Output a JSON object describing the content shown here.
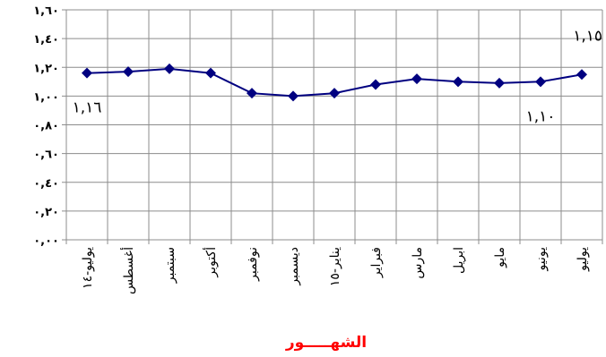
{
  "chart_data": {
    "type": "line",
    "categories": [
      "يوليو-١٤",
      "أغسطس",
      "سبتمبر",
      "أكتوبر",
      "نوفمبر",
      "ديسمبر",
      "يناير-١٥",
      "فبراير",
      "مارس",
      "ابريل",
      "مايو",
      "يونيو",
      "يوليو"
    ],
    "series": [
      {
        "values": [
          1.16,
          1.17,
          1.19,
          1.16,
          1.02,
          1.0,
          1.02,
          1.08,
          1.12,
          1.1,
          1.09,
          1.1,
          1.15
        ]
      }
    ],
    "ylim": [
      0,
      1.6
    ],
    "yticks": [
      0,
      0.2,
      0.4,
      0.6,
      0.8,
      1.0,
      1.2,
      1.4,
      1.6
    ],
    "ytick_labels": [
      "٠,٠٠",
      "٠,٢٠",
      "٠,٤٠",
      "٠,٦٠",
      "٠,٨٠",
      "١,٠٠",
      "١,٢٠",
      "١,٤٠",
      "١,٦٠"
    ],
    "xlabel": "الشهـــــور",
    "annotations": [
      {
        "text": "١,١٦",
        "index": 0
      },
      {
        "text": "١,١٠",
        "index": 11
      },
      {
        "text": "١,١٥",
        "index": 12
      }
    ],
    "grid": true,
    "colors": {
      "line": "#000080",
      "marker": "#000080",
      "grid": "#8c8c8c",
      "xlabel": "#ff0000"
    }
  }
}
